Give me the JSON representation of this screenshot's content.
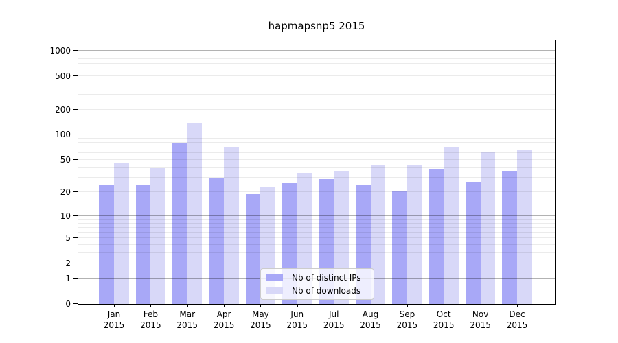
{
  "title": "hapmapsnp5 2015",
  "chart_data": {
    "type": "bar",
    "title": "hapmapsnp5 2015",
    "categories": [
      "Jan 2015",
      "Feb 2015",
      "Mar 2015",
      "Apr 2015",
      "May 2015",
      "Jun 2015",
      "Jul 2015",
      "Aug 2015",
      "Sep 2015",
      "Oct 2015",
      "Nov 2015",
      "Dec 2015"
    ],
    "series": [
      {
        "name": "Nb of distinct IPs",
        "color": "#a8a8f7",
        "values": [
          25,
          25,
          80,
          30,
          19,
          26,
          29,
          25,
          21,
          39,
          27,
          36
        ]
      },
      {
        "name": "Nb of downloads",
        "color": "#d8d8f8",
        "values": [
          45,
          40,
          140,
          72,
          23,
          35,
          36,
          44,
          44,
          72,
          62,
          67
        ]
      }
    ],
    "xlabel": "",
    "ylabel": "",
    "y_scale": "log10(1+x)",
    "y_tick_labels": [
      0,
      1,
      2,
      5,
      10,
      20,
      50,
      100,
      200,
      500,
      1000
    ],
    "ylim": [
      0,
      1350
    ],
    "grid": "on",
    "legend_position": "bottom-center"
  }
}
